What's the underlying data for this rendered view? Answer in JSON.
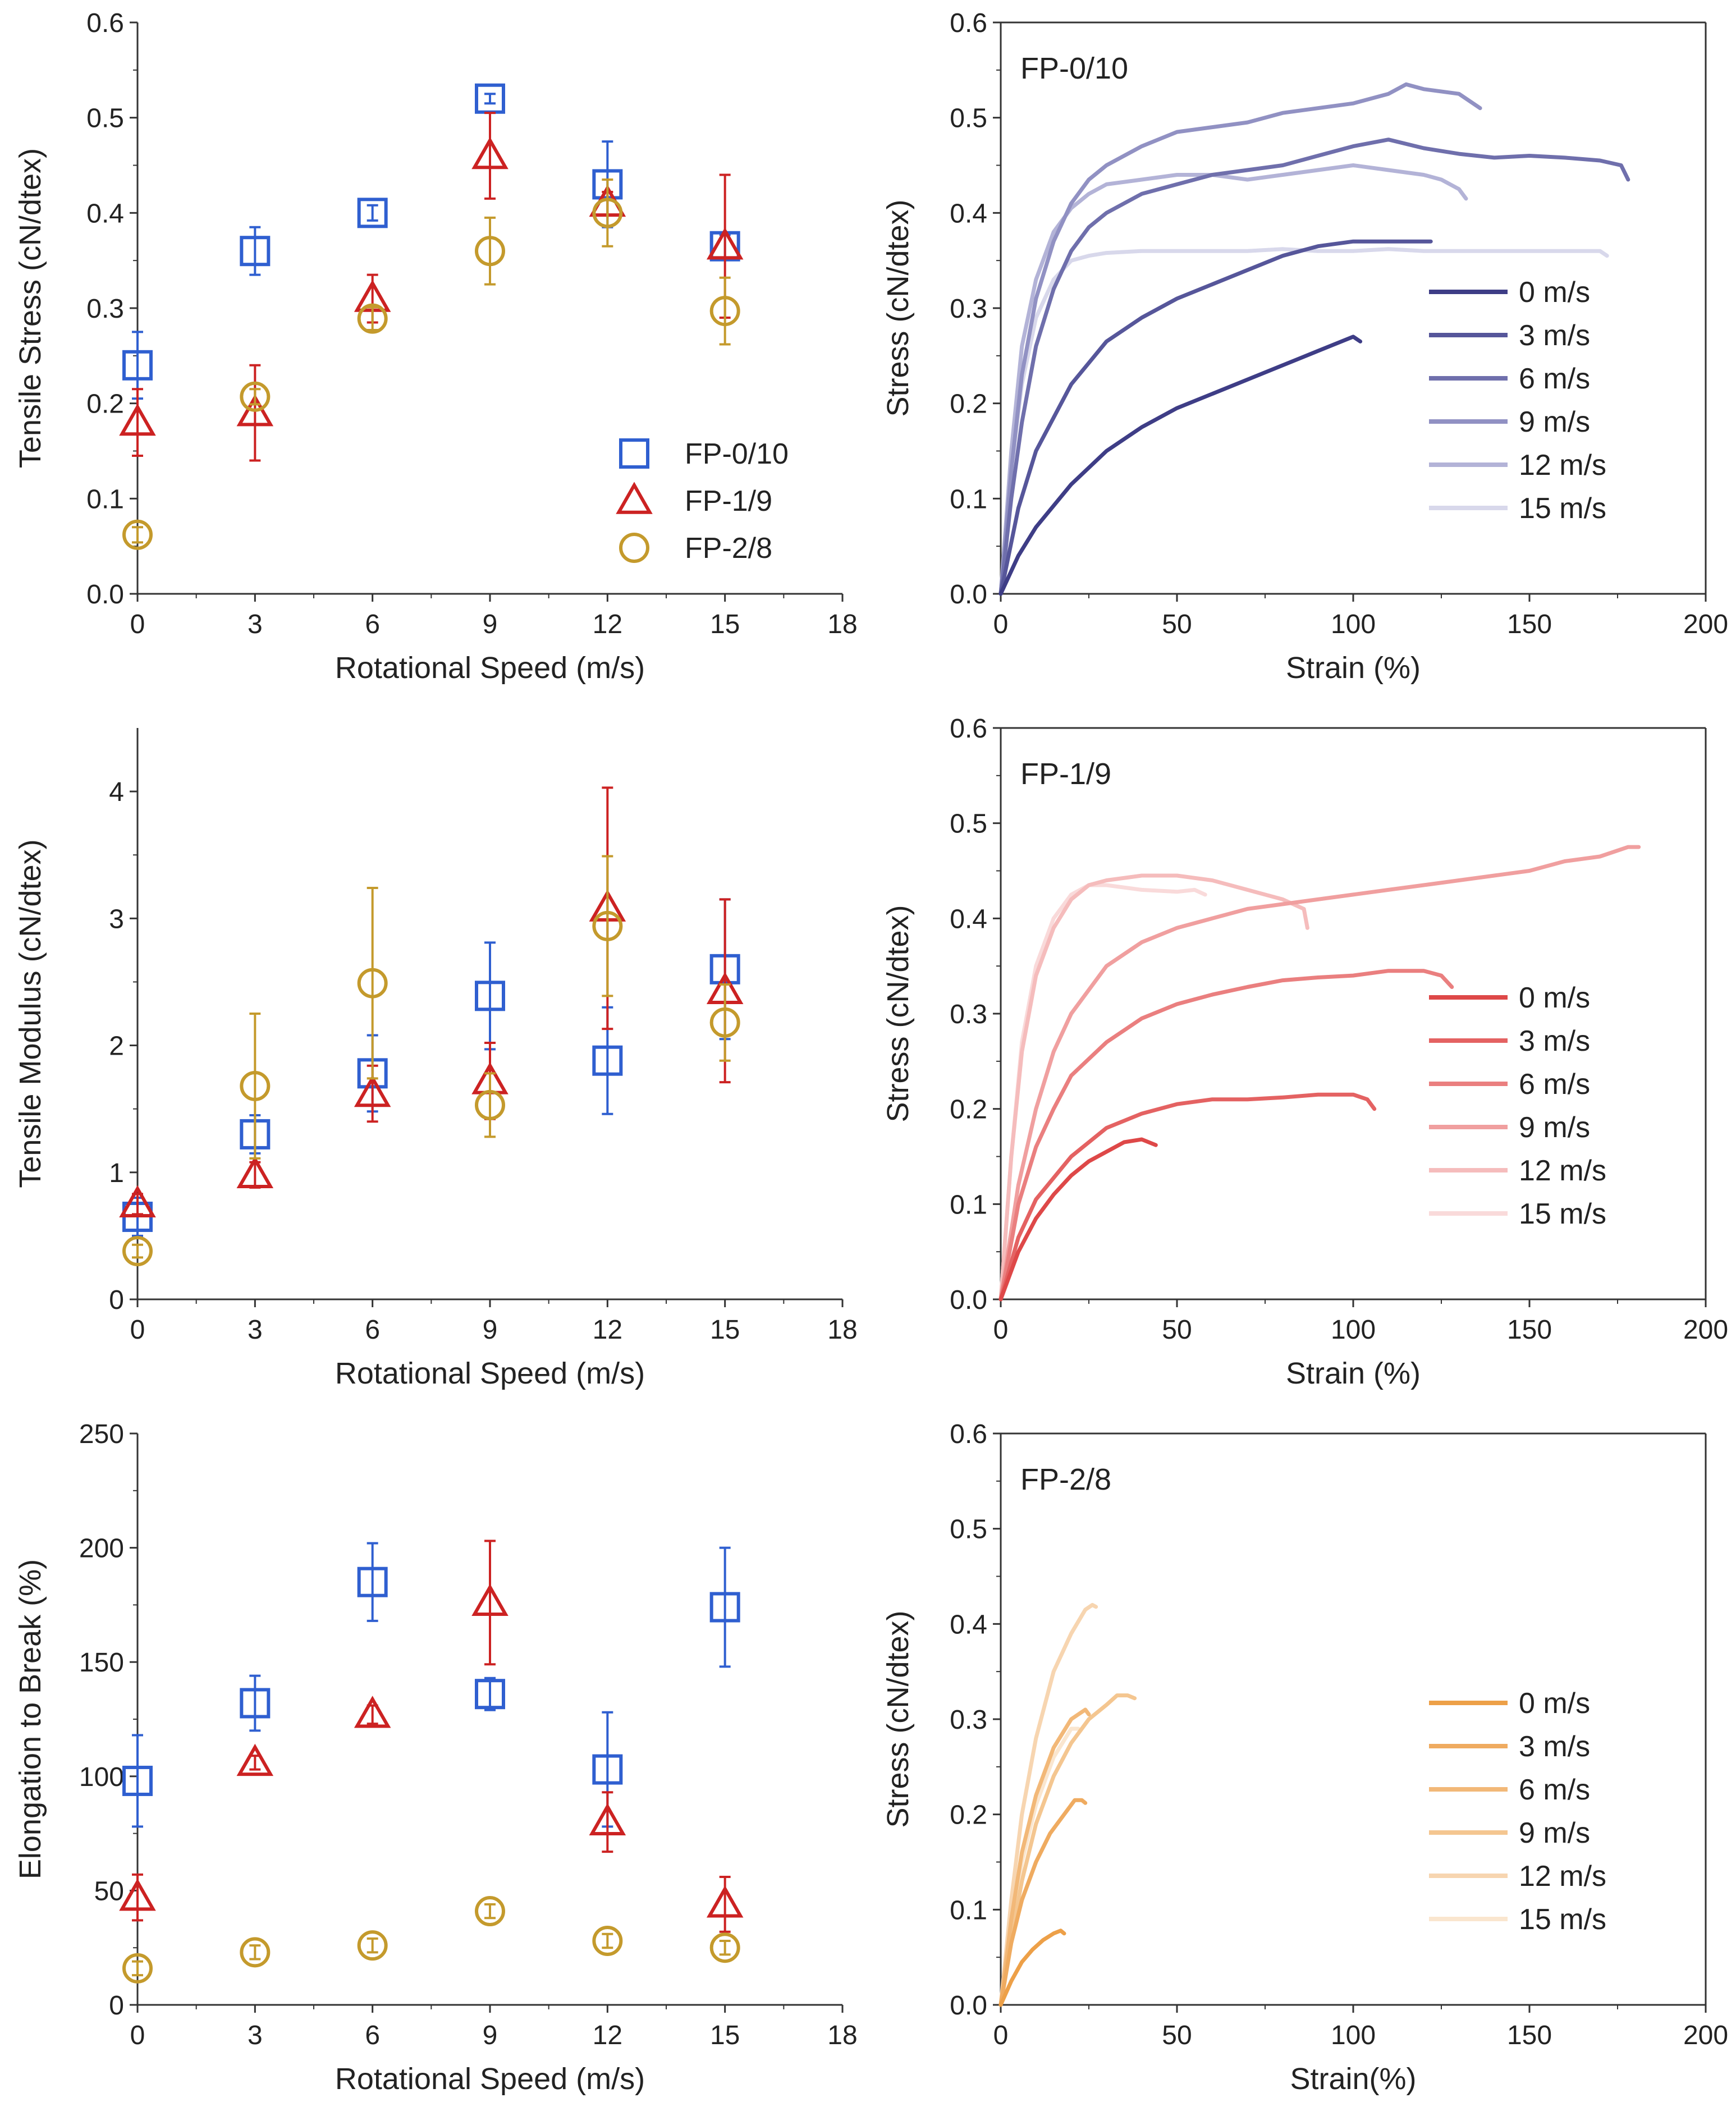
{
  "figure": {
    "panel_count": 6
  },
  "chart_data": [
    {
      "id": "tensile-stress",
      "type": "scatter",
      "title": "",
      "xlabel": "Rotational Speed (m/s)",
      "ylabel": "Tensile Stress (cN/dtex)",
      "xlim": [
        0,
        18
      ],
      "ylim": [
        0,
        0.6
      ],
      "xticks": [
        0,
        3,
        6,
        9,
        12,
        15,
        18
      ],
      "yticks": [
        0.0,
        0.1,
        0.2,
        0.3,
        0.4,
        0.5,
        0.6
      ],
      "ytick_labels": [
        "0.0",
        "0.1",
        "0.2",
        "0.3",
        "0.4",
        "0.5",
        "0.6"
      ],
      "legend_position": "bottom-right",
      "x": [
        0,
        3,
        6,
        9,
        12,
        15
      ],
      "series": [
        {
          "name": "FP-0/10",
          "marker": "square",
          "color": "#2f5fd0",
          "values": [
            0.24,
            0.36,
            0.4,
            0.52,
            0.43,
            0.365
          ],
          "errors": [
            0.035,
            0.025,
            0.008,
            0.005,
            0.045,
            0.012
          ]
        },
        {
          "name": "FP-1/9",
          "marker": "triangle",
          "color": "#cc2222",
          "values": [
            0.18,
            0.19,
            0.31,
            0.46,
            0.41,
            0.365
          ],
          "errors": [
            0.035,
            0.05,
            0.025,
            0.045,
            0.012,
            0.075
          ]
        },
        {
          "name": "FP-2/8",
          "marker": "circle",
          "color": "#c49a2c",
          "values": [
            0.062,
            0.207,
            0.289,
            0.36,
            0.4,
            0.297
          ],
          "errors": [
            0.008,
            0.008,
            0.012,
            0.035,
            0.035,
            0.035
          ]
        }
      ]
    },
    {
      "id": "stress-strain-fp-0-10",
      "type": "line",
      "title": "FP-0/10",
      "xlabel": "Strain (%)",
      "ylabel": "Stress (cN/dtex)",
      "xlim": [
        0,
        200
      ],
      "ylim": [
        0,
        0.6
      ],
      "xticks": [
        0,
        50,
        100,
        150,
        200
      ],
      "yticks": [
        0.0,
        0.1,
        0.2,
        0.3,
        0.4,
        0.5,
        0.6
      ],
      "ytick_labels": [
        "0.0",
        "0.1",
        "0.2",
        "0.3",
        "0.4",
        "0.5",
        "0.6"
      ],
      "legend_position": "right",
      "series": [
        {
          "name": "0 m/s",
          "color": "#3e3d86",
          "x": [
            0,
            5,
            10,
            20,
            30,
            40,
            50,
            60,
            70,
            80,
            90,
            100,
            102
          ],
          "y": [
            0,
            0.04,
            0.07,
            0.115,
            0.15,
            0.175,
            0.195,
            0.21,
            0.225,
            0.24,
            0.255,
            0.27,
            0.265
          ]
        },
        {
          "name": "3 m/s",
          "color": "#56569a",
          "x": [
            0,
            5,
            10,
            20,
            30,
            40,
            50,
            60,
            70,
            80,
            90,
            100,
            110,
            120,
            122
          ],
          "y": [
            0,
            0.09,
            0.15,
            0.22,
            0.265,
            0.29,
            0.31,
            0.325,
            0.34,
            0.355,
            0.365,
            0.37,
            0.37,
            0.37,
            0.37
          ]
        },
        {
          "name": "6 m/s",
          "color": "#6f6fac",
          "x": [
            0,
            3,
            6,
            10,
            15,
            20,
            25,
            30,
            40,
            50,
            60,
            70,
            80,
            90,
            100,
            110,
            120,
            130,
            140,
            150,
            160,
            170,
            176,
            178
          ],
          "y": [
            0,
            0.1,
            0.18,
            0.26,
            0.32,
            0.36,
            0.385,
            0.4,
            0.42,
            0.43,
            0.44,
            0.445,
            0.45,
            0.46,
            0.47,
            0.477,
            0.468,
            0.462,
            0.458,
            0.46,
            0.458,
            0.455,
            0.45,
            0.435
          ]
        },
        {
          "name": "9 m/s",
          "color": "#9191c3",
          "x": [
            0,
            3,
            6,
            10,
            15,
            20,
            25,
            30,
            40,
            50,
            60,
            70,
            80,
            90,
            100,
            110,
            115,
            120,
            130,
            136
          ],
          "y": [
            0,
            0.13,
            0.23,
            0.31,
            0.37,
            0.41,
            0.435,
            0.45,
            0.47,
            0.485,
            0.49,
            0.495,
            0.505,
            0.51,
            0.515,
            0.525,
            0.535,
            0.53,
            0.525,
            0.51
          ]
        },
        {
          "name": "12 m/s",
          "color": "#b3b3d7",
          "x": [
            0,
            3,
            6,
            10,
            15,
            20,
            25,
            30,
            40,
            50,
            60,
            70,
            80,
            90,
            100,
            110,
            120,
            125,
            130,
            132
          ],
          "y": [
            0,
            0.15,
            0.26,
            0.33,
            0.38,
            0.405,
            0.42,
            0.43,
            0.435,
            0.44,
            0.44,
            0.435,
            0.44,
            0.445,
            0.45,
            0.445,
            0.44,
            0.435,
            0.425,
            0.415
          ]
        },
        {
          "name": "15 m/s",
          "color": "#d8d8eb",
          "x": [
            0,
            3,
            6,
            10,
            15,
            20,
            25,
            30,
            40,
            50,
            60,
            70,
            80,
            90,
            100,
            110,
            120,
            130,
            140,
            150,
            160,
            170,
            172
          ],
          "y": [
            0,
            0.13,
            0.22,
            0.29,
            0.33,
            0.35,
            0.355,
            0.358,
            0.36,
            0.36,
            0.36,
            0.36,
            0.362,
            0.36,
            0.36,
            0.362,
            0.36,
            0.36,
            0.36,
            0.36,
            0.36,
            0.36,
            0.355
          ]
        }
      ]
    },
    {
      "id": "tensile-modulus",
      "type": "scatter",
      "title": "",
      "xlabel": "Rotational Speed (m/s)",
      "ylabel": "Tensile Modulus (cN/dtex)",
      "xlim": [
        0,
        18
      ],
      "ylim": [
        0,
        4.5
      ],
      "xticks": [
        0,
        3,
        6,
        9,
        12,
        15,
        18
      ],
      "yticks": [
        0,
        1,
        2,
        3,
        4
      ],
      "ytick_labels": [
        "0",
        "1",
        "2",
        "3",
        "4"
      ],
      "legend_position": "none",
      "x": [
        0,
        3,
        6,
        9,
        12,
        15
      ],
      "series": [
        {
          "name": "FP-0/10",
          "marker": "square",
          "color": "#2f5fd0",
          "values": [
            0.65,
            1.3,
            1.78,
            2.39,
            1.88,
            2.6
          ],
          "errors": [
            0.15,
            0.15,
            0.3,
            0.42,
            0.42,
            0.55
          ]
        },
        {
          "name": "FP-1/9",
          "marker": "triangle",
          "color": "#cc2222",
          "values": [
            0.75,
            0.98,
            1.62,
            1.72,
            3.08,
            2.43
          ],
          "errors": [
            0.08,
            0.1,
            0.22,
            0.3,
            0.95,
            0.72
          ]
        },
        {
          "name": "FP-2/8",
          "marker": "circle",
          "color": "#c49a2c",
          "values": [
            0.38,
            1.68,
            2.49,
            1.53,
            2.94,
            2.18
          ],
          "errors": [
            0.05,
            0.57,
            0.75,
            0.25,
            0.55,
            0.3
          ]
        }
      ]
    },
    {
      "id": "stress-strain-fp-1-9",
      "type": "line",
      "title": "FP-1/9",
      "xlabel": "Strain (%)",
      "ylabel": "Stress (cN/dtex)",
      "xlim": [
        0,
        200
      ],
      "ylim": [
        0,
        0.6
      ],
      "xticks": [
        0,
        50,
        100,
        150,
        200
      ],
      "yticks": [
        0.0,
        0.1,
        0.2,
        0.3,
        0.4,
        0.5,
        0.6
      ],
      "ytick_labels": [
        "0.0",
        "0.1",
        "0.2",
        "0.3",
        "0.4",
        "0.5",
        "0.6"
      ],
      "legend_position": "right",
      "series": [
        {
          "name": "0 m/s",
          "color": "#de4848",
          "x": [
            0,
            5,
            10,
            15,
            20,
            25,
            30,
            35,
            40,
            44
          ],
          "y": [
            0,
            0.05,
            0.085,
            0.11,
            0.13,
            0.145,
            0.155,
            0.165,
            0.168,
            0.162
          ]
        },
        {
          "name": "3 m/s",
          "color": "#e46262",
          "x": [
            0,
            5,
            10,
            20,
            30,
            40,
            50,
            60,
            70,
            80,
            90,
            100,
            104,
            106
          ],
          "y": [
            0,
            0.065,
            0.105,
            0.15,
            0.18,
            0.195,
            0.205,
            0.21,
            0.21,
            0.212,
            0.215,
            0.215,
            0.21,
            0.2
          ]
        },
        {
          "name": "6 m/s",
          "color": "#ea7f7f",
          "x": [
            0,
            5,
            10,
            15,
            20,
            30,
            40,
            50,
            60,
            70,
            80,
            90,
            100,
            110,
            120,
            125,
            128
          ],
          "y": [
            0,
            0.1,
            0.16,
            0.2,
            0.235,
            0.27,
            0.295,
            0.31,
            0.32,
            0.328,
            0.335,
            0.338,
            0.34,
            0.345,
            0.345,
            0.34,
            0.328
          ]
        },
        {
          "name": "9 m/s",
          "color": "#f09f9f",
          "x": [
            0,
            5,
            10,
            15,
            20,
            30,
            40,
            50,
            60,
            70,
            80,
            90,
            100,
            110,
            120,
            130,
            140,
            150,
            160,
            170,
            178,
            181
          ],
          "y": [
            0,
            0.12,
            0.2,
            0.26,
            0.3,
            0.35,
            0.375,
            0.39,
            0.4,
            0.41,
            0.415,
            0.42,
            0.425,
            0.43,
            0.435,
            0.44,
            0.445,
            0.45,
            0.46,
            0.465,
            0.475,
            0.475
          ]
        },
        {
          "name": "12 m/s",
          "color": "#f5bcbc",
          "x": [
            0,
            3,
            6,
            10,
            15,
            20,
            25,
            30,
            40,
            50,
            60,
            70,
            80,
            86,
            87
          ],
          "y": [
            0,
            0.15,
            0.26,
            0.34,
            0.39,
            0.42,
            0.435,
            0.44,
            0.445,
            0.445,
            0.44,
            0.43,
            0.42,
            0.41,
            0.39
          ]
        },
        {
          "name": "15 m/s",
          "color": "#f9dada",
          "x": [
            0,
            3,
            6,
            10,
            15,
            20,
            25,
            30,
            40,
            50,
            55,
            58
          ],
          "y": [
            0,
            0.15,
            0.27,
            0.35,
            0.4,
            0.425,
            0.435,
            0.435,
            0.43,
            0.428,
            0.43,
            0.425
          ]
        }
      ]
    },
    {
      "id": "elongation-to-break",
      "type": "scatter",
      "title": "",
      "xlabel": "Rotational Speed (m/s)",
      "ylabel": "Elongation to Break (%)",
      "xlim": [
        0,
        18
      ],
      "ylim": [
        0,
        250
      ],
      "xticks": [
        0,
        3,
        6,
        9,
        12,
        15,
        18
      ],
      "yticks": [
        0,
        50,
        100,
        150,
        200,
        250
      ],
      "ytick_labels": [
        "0",
        "50",
        "100",
        "150",
        "200",
        "250"
      ],
      "legend_position": "none",
      "x": [
        0,
        3,
        6,
        9,
        12,
        15
      ],
      "series": [
        {
          "name": "FP-0/10",
          "marker": "square",
          "color": "#2f5fd0",
          "values": [
            98,
            132,
            185,
            136,
            103,
            174
          ],
          "errors": [
            20,
            12,
            17,
            7,
            25,
            26
          ]
        },
        {
          "name": "FP-1/9",
          "marker": "triangle",
          "color": "#cc2222",
          "values": [
            47,
            106,
            127,
            176,
            80,
            44
          ],
          "errors": [
            10,
            3,
            4,
            27,
            13,
            12
          ]
        },
        {
          "name": "FP-2/8",
          "marker": "circle",
          "color": "#c49a2c",
          "values": [
            16,
            23,
            26,
            41,
            28,
            25
          ],
          "errors": [
            3,
            3,
            3,
            3,
            3,
            3
          ]
        }
      ]
    },
    {
      "id": "stress-strain-fp-2-8",
      "type": "line",
      "title": "FP-2/8",
      "xlabel": "Strain(%)",
      "ylabel": "Stress (cN/dtex)",
      "xlim": [
        0,
        200
      ],
      "ylim": [
        0,
        0.6
      ],
      "xticks": [
        0,
        50,
        100,
        150,
        200
      ],
      "yticks": [
        0.0,
        0.1,
        0.2,
        0.3,
        0.4,
        0.5,
        0.6
      ],
      "ytick_labels": [
        "0.0",
        "0.1",
        "0.2",
        "0.3",
        "0.4",
        "0.5",
        "0.6"
      ],
      "legend_position": "right",
      "series": [
        {
          "name": "0 m/s",
          "color": "#eda048",
          "x": [
            0,
            3,
            6,
            9,
            12,
            15,
            17,
            18
          ],
          "y": [
            0,
            0.025,
            0.045,
            0.058,
            0.068,
            0.075,
            0.078,
            0.075
          ]
        },
        {
          "name": "3 m/s",
          "color": "#efab60",
          "x": [
            0,
            3,
            6,
            10,
            14,
            18,
            21,
            23,
            24
          ],
          "y": [
            0,
            0.065,
            0.11,
            0.15,
            0.18,
            0.2,
            0.215,
            0.215,
            0.212
          ]
        },
        {
          "name": "6 m/s",
          "color": "#f2b878",
          "x": [
            0,
            3,
            6,
            10,
            15,
            20,
            24,
            25
          ],
          "y": [
            0,
            0.09,
            0.16,
            0.22,
            0.27,
            0.3,
            0.31,
            0.305
          ]
        },
        {
          "name": "9 m/s",
          "color": "#f4c690",
          "x": [
            0,
            3,
            6,
            10,
            15,
            20,
            25,
            30,
            33,
            36,
            38
          ],
          "y": [
            0,
            0.07,
            0.13,
            0.19,
            0.24,
            0.275,
            0.3,
            0.315,
            0.325,
            0.325,
            0.322
          ]
        },
        {
          "name": "12 m/s",
          "color": "#f7d5b0",
          "x": [
            0,
            3,
            6,
            10,
            15,
            20,
            24,
            26,
            27
          ],
          "y": [
            0,
            0.11,
            0.2,
            0.28,
            0.35,
            0.39,
            0.415,
            0.42,
            0.418
          ]
        },
        {
          "name": "15 m/s",
          "color": "#fae6cf",
          "x": [
            0,
            3,
            6,
            10,
            15,
            20,
            22
          ],
          "y": [
            0,
            0.08,
            0.15,
            0.21,
            0.26,
            0.29,
            0.29
          ]
        }
      ]
    }
  ]
}
